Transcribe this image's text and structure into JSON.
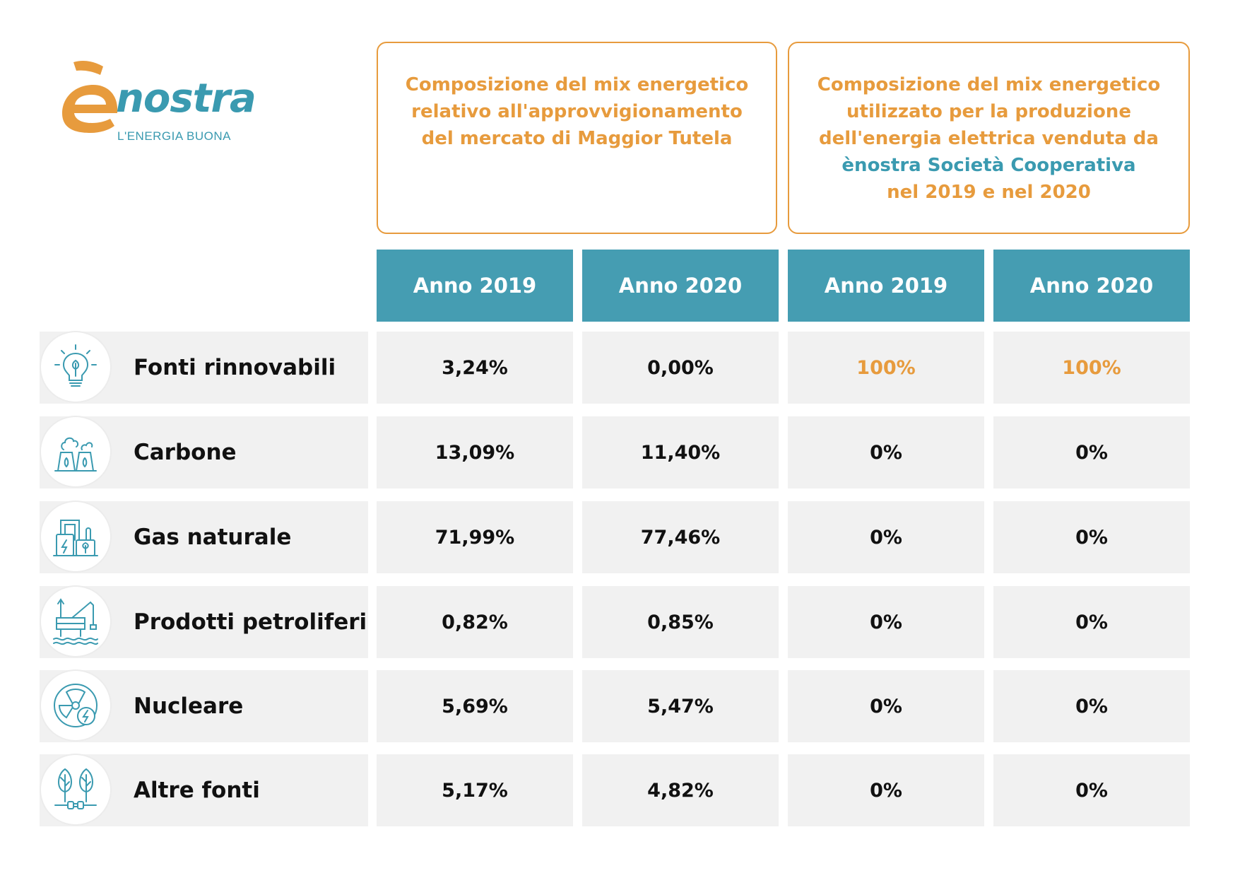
{
  "logo": {
    "e_letter": "è",
    "brand": "nostra",
    "tagline": "L'ENERGIA BUONA"
  },
  "header_left": {
    "lines": [
      "Composizione del mix energetico",
      "relativo all'approvvigionamento",
      "del mercato di Maggior Tutela"
    ]
  },
  "header_right": {
    "lines": [
      "Composizione del mix energetico",
      "utilizzato per la produzione",
      "dell'energia elettrica venduta da",
      "ènostra Società Cooperativa",
      "nel 2019 e nel 2020"
    ]
  },
  "columns": [
    "Anno 2019",
    "Anno 2020",
    "Anno 2019",
    "Anno 2020"
  ],
  "rows": [
    {
      "label": "Fonti rinnovabili",
      "icon": "lightbulb-leaf-icon",
      "values": [
        "3,24%",
        "0,00%",
        "100%",
        "100%"
      ]
    },
    {
      "label": "Carbone",
      "icon": "cooling-towers-icon",
      "values": [
        "13,09%",
        "11,40%",
        "0%",
        "0%"
      ]
    },
    {
      "label": "Gas naturale",
      "icon": "gas-plant-icon",
      "values": [
        "71,99%",
        "77,46%",
        "0%",
        "0%"
      ]
    },
    {
      "label": "Prodotti petroliferi",
      "icon": "oil-rig-icon",
      "values": [
        "0,82%",
        "0,85%",
        "0%",
        "0%"
      ]
    },
    {
      "label": "Nucleare",
      "icon": "nuclear-icon",
      "values": [
        "5,69%",
        "5,47%",
        "0%",
        "0%"
      ]
    },
    {
      "label": "Altre fonti",
      "icon": "trees-plug-icon",
      "values": [
        "5,17%",
        "4,82%",
        "0%",
        "0%"
      ]
    }
  ],
  "colors": {
    "teal": "#459db2",
    "orange": "#e79b3d",
    "row_bg": "#f1f1f1",
    "icon_stroke": "#3a9ab0"
  }
}
